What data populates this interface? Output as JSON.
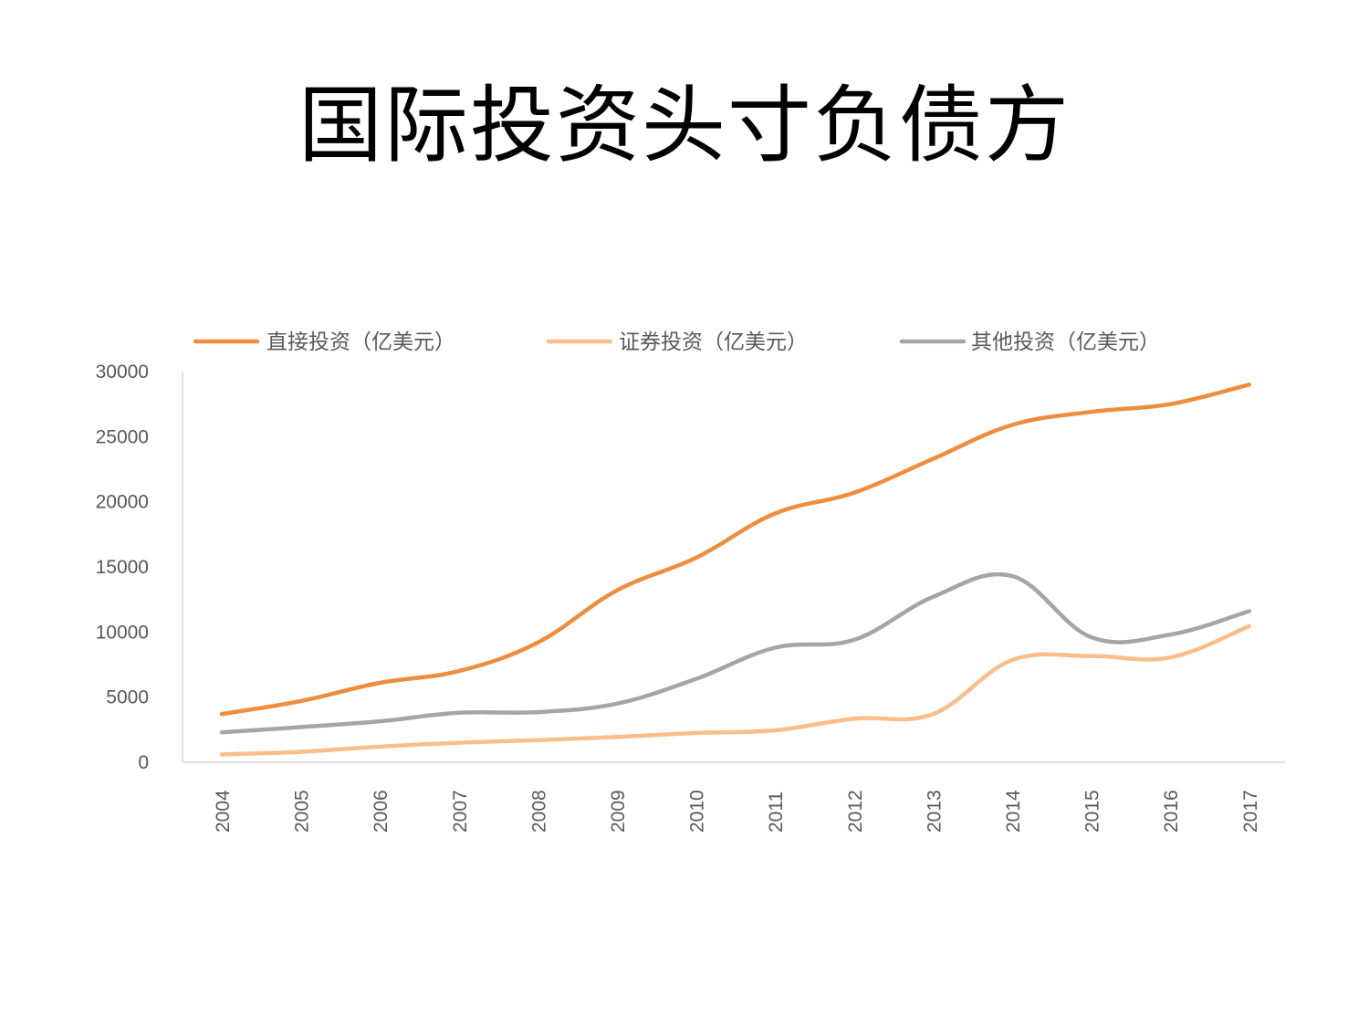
{
  "page": {
    "title": "国际投资头寸负债方"
  },
  "chart_data": {
    "type": "line",
    "title": "国际投资头寸负债方",
    "x": [
      "2004",
      "2005",
      "2006",
      "2007",
      "2008",
      "2009",
      "2010",
      "2011",
      "2012",
      "2013",
      "2014",
      "2015",
      "2016",
      "2017"
    ],
    "series": [
      {
        "name": "直接投资（亿美元）",
        "color": "#ED8E3F",
        "values": [
          3700,
          4700,
          6100,
          7000,
          9200,
          13200,
          15700,
          19100,
          20700,
          23300,
          25900,
          26900,
          27500,
          29000
        ]
      },
      {
        "name": "证券投资（亿美元）",
        "color": "#F9BE8A",
        "values": [
          600,
          800,
          1200,
          1500,
          1700,
          1950,
          2250,
          2450,
          3350,
          3700,
          7850,
          8150,
          8050,
          10450
        ]
      },
      {
        "name": "其他投资（亿美元）",
        "color": "#A5A5A5",
        "values": [
          2300,
          2700,
          3150,
          3800,
          3850,
          4500,
          6400,
          8800,
          9400,
          12700,
          14300,
          9600,
          9800,
          11600
        ]
      }
    ],
    "y_ticks": [
      "0",
      "5000",
      "10000",
      "15000",
      "20000",
      "25000",
      "30000"
    ],
    "ylim": [
      0,
      30000
    ],
    "grid": false,
    "legend": "top",
    "xlabel": "",
    "ylabel": ""
  }
}
